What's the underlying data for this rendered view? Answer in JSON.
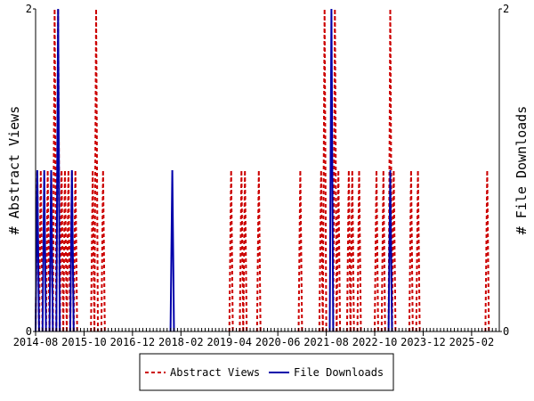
{
  "chart_data": {
    "type": "line",
    "title": "",
    "xlabel": "",
    "ylabel_left": "# Abstract Views",
    "ylabel_right": "# File Downloads",
    "x_start": "2014-08",
    "x_end": "2025-10",
    "x_ticks": [
      "2014-08",
      "2015-10",
      "2016-12",
      "2018-02",
      "2019-04",
      "2020-06",
      "2021-08",
      "2022-10",
      "2023-12",
      "2025-02"
    ],
    "ylim_left": [
      0,
      2
    ],
    "ylim_right": [
      0,
      2
    ],
    "y_ticks_left": [
      "0",
      "2"
    ],
    "y_ticks_right": [
      "0",
      "2"
    ],
    "grid": false,
    "legend_position": "bottom-center",
    "series": [
      {
        "name": "Abstract Views",
        "color": "#cc0000",
        "style": "dashed",
        "points": [
          [
            "2014-08",
            1
          ],
          [
            "2014-09",
            1
          ],
          [
            "2014-10",
            0
          ],
          [
            "2014-11",
            1
          ],
          [
            "2014-12",
            1
          ],
          [
            "2015-01",
            2
          ],
          [
            "2015-02",
            2
          ],
          [
            "2015-03",
            1
          ],
          [
            "2015-04",
            1
          ],
          [
            "2015-05",
            1
          ],
          [
            "2015-06",
            1
          ],
          [
            "2015-07",
            1
          ],
          [
            "2015-08",
            0
          ],
          [
            "2015-09",
            0
          ],
          [
            "2015-10",
            0
          ],
          [
            "2015-11",
            0
          ],
          [
            "2015-12",
            1
          ],
          [
            "2016-01",
            2
          ],
          [
            "2016-02",
            0
          ],
          [
            "2016-03",
            1
          ],
          [
            "2019-04",
            1
          ],
          [
            "2019-05",
            0
          ],
          [
            "2019-06",
            0
          ],
          [
            "2019-07",
            1
          ],
          [
            "2019-08",
            1
          ],
          [
            "2019-09",
            0
          ],
          [
            "2019-10",
            0
          ],
          [
            "2019-11",
            0
          ],
          [
            "2019-12",
            1
          ],
          [
            "2020-12",
            1
          ],
          [
            "2021-06",
            1
          ],
          [
            "2021-07",
            2
          ],
          [
            "2021-08",
            0
          ],
          [
            "2021-09",
            0
          ],
          [
            "2021-10",
            2
          ],
          [
            "2021-11",
            1
          ],
          [
            "2021-12",
            0
          ],
          [
            "2022-01",
            0
          ],
          [
            "2022-02",
            1
          ],
          [
            "2022-03",
            1
          ],
          [
            "2022-04",
            0
          ],
          [
            "2022-05",
            1
          ],
          [
            "2022-10",
            1
          ],
          [
            "2022-11",
            0
          ],
          [
            "2022-12",
            1
          ],
          [
            "2023-01",
            0
          ],
          [
            "2023-02",
            2
          ],
          [
            "2023-03",
            1
          ],
          [
            "2023-08",
            1
          ],
          [
            "2023-09",
            0
          ],
          [
            "2023-10",
            1
          ],
          [
            "2025-06",
            1
          ]
        ]
      },
      {
        "name": "File Downloads",
        "color": "#0000aa",
        "style": "solid",
        "points": [
          [
            "2014-08",
            1
          ],
          [
            "2014-09",
            0
          ],
          [
            "2014-10",
            1
          ],
          [
            "2014-11",
            0
          ],
          [
            "2014-12",
            1
          ],
          [
            "2015-01",
            0
          ],
          [
            "2015-02",
            2
          ],
          [
            "2015-03",
            0
          ],
          [
            "2015-06",
            1
          ],
          [
            "2017-11",
            1
          ],
          [
            "2021-09",
            2
          ],
          [
            "2023-02",
            1
          ]
        ]
      }
    ]
  }
}
